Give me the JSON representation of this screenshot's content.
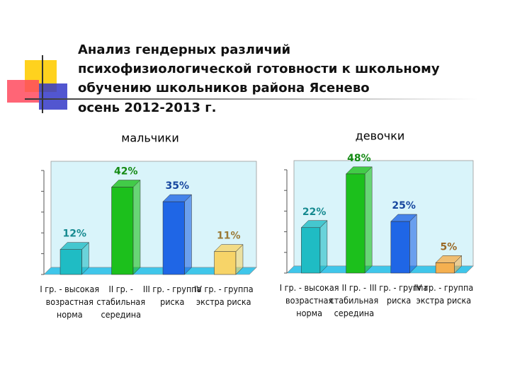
{
  "slide_title": [
    "Анализ гендерных различий",
    "психофизиологической готовности к школьному",
    "обучению школьников района Ясенево",
    "осень 2012-2013 г."
  ],
  "chart_data": [
    {
      "type": "bar3d",
      "title": "мальчики",
      "categories": [
        "I гр. - высокая возрастная норма",
        "II гр. - стабильная середина",
        "III гр. - группа риска",
        "IV гр. - группа экстра риска"
      ],
      "values": [
        12,
        42,
        35,
        11
      ],
      "value_labels": [
        "12%",
        "42%",
        "35%",
        "11%"
      ],
      "colors": [
        "#1fbcc4",
        "#1cc01c",
        "#1f66e6",
        "#f7d468"
      ],
      "label_colors": [
        "#168a90",
        "#138a13",
        "#17479f",
        "#9a7a36"
      ],
      "ylim": [
        0,
        50
      ],
      "yticks": [
        0,
        10,
        20,
        30,
        40,
        50
      ]
    },
    {
      "type": "bar3d",
      "title": "девочки",
      "categories": [
        "I гр. - высокая возрастная норма",
        "II гр. - стабильная середина",
        "III гр. - группа риска",
        "IV гр. - группа экстра риска"
      ],
      "values": [
        22,
        48,
        25,
        5
      ],
      "value_labels": [
        "22%",
        "48%",
        "25%",
        "5%"
      ],
      "colors": [
        "#1fbcc4",
        "#1cc01c",
        "#1f66e6",
        "#f5b050"
      ],
      "label_colors": [
        "#168a90",
        "#138a13",
        "#17479f",
        "#9a6a26"
      ],
      "ylim": [
        0,
        50
      ],
      "yticks": [
        0,
        10,
        20,
        30,
        40,
        50
      ]
    }
  ]
}
